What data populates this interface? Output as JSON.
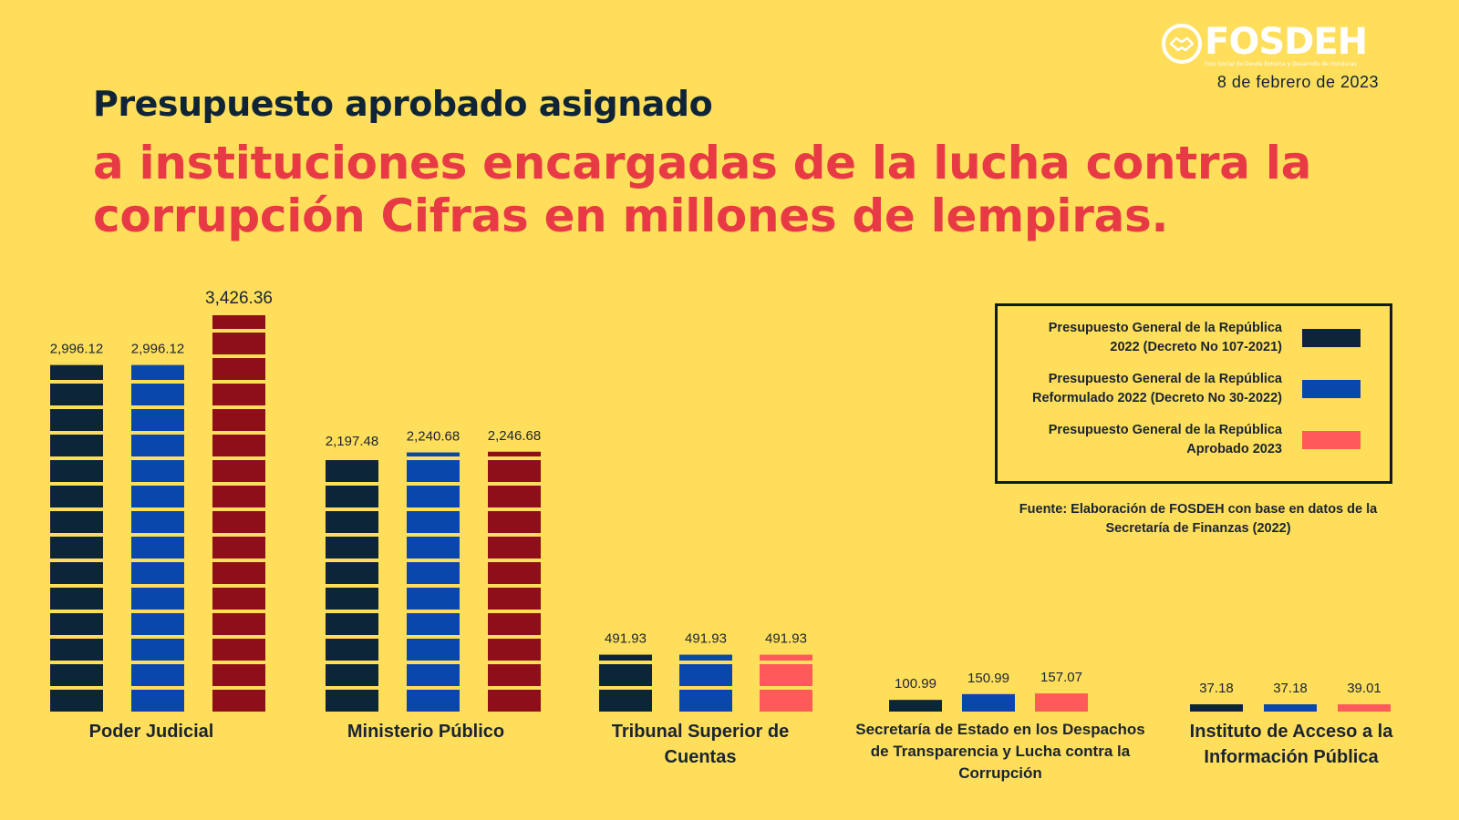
{
  "logo": {
    "name": "FOSDEH",
    "subtitle": "Foro Social de Deuda Externa y Desarrollo de Honduras"
  },
  "date": "8 de febrero de 2023",
  "title_line1": "Presupuesto aprobado asignado",
  "title_line2": "a instituciones encargadas de la lucha contra la corrupción Cifras en millones de lempiras.",
  "legend": [
    {
      "label_line1": "Presupuesto General de la República",
      "label_line2": "2022 (Decreto No 107-2021)",
      "color": "#0d2538"
    },
    {
      "label_line1": "Presupuesto General de la República",
      "label_line2": "Reformulado 2022 (Decreto No 30-2022)",
      "color": "#0a47ad"
    },
    {
      "label_line1": "Presupuesto General de la República",
      "label_line2": "Aprobado 2023",
      "color": "#ff5a5a"
    }
  ],
  "source": "Fuente: Elaboración de FOSDEH con base en datos de la Secretaría de Finanzas (2022)",
  "chart_data": {
    "type": "bar",
    "categories": [
      "Poder Judicial",
      "Ministerio Público",
      "Tribunal Superior de Cuentas",
      "Secretaría de Estado en los Despachos de Transparencia y Lucha contra la Corrupción",
      "Instituto de Acceso a la Información Pública"
    ],
    "series": [
      {
        "name": "Presupuesto General de la República 2022 (Decreto No 107-2021)",
        "values": [
          2996.12,
          2197.48,
          491.93,
          100.99,
          37.18
        ],
        "labels": [
          "2,996.12",
          "2,197.48",
          "491.93",
          "100.99",
          "37.18"
        ]
      },
      {
        "name": "Presupuesto General de la República Reformulado 2022 (Decreto No 30-2022)",
        "values": [
          2996.12,
          2240.68,
          491.93,
          150.99,
          37.18
        ],
        "labels": [
          "2,996.12",
          "2,240.68",
          "491.93",
          "150.99",
          "37.18"
        ]
      },
      {
        "name": "Presupuesto General de la República Aprobado 2023",
        "values": [
          3426.36,
          2246.68,
          491.93,
          157.07,
          39.01
        ],
        "labels": [
          "3,426.36",
          "2,246.68",
          "491.93",
          "157.07",
          "39.01"
        ]
      }
    ],
    "bar_colors": [
      [
        "#0d2538",
        "#0a47ad",
        "#8e0f1a"
      ],
      [
        "#0d2538",
        "#0a47ad",
        "#8e0f1a"
      ],
      [
        "#0d2538",
        "#0a47ad",
        "#ff5a5a"
      ],
      [
        "#0d2538",
        "#0a47ad",
        "#ff5a5a"
      ],
      [
        "#0d2538",
        "#0a47ad",
        "#ff5a5a"
      ]
    ],
    "ylim": [
      0,
      3426.36
    ],
    "legend_position": "right"
  }
}
